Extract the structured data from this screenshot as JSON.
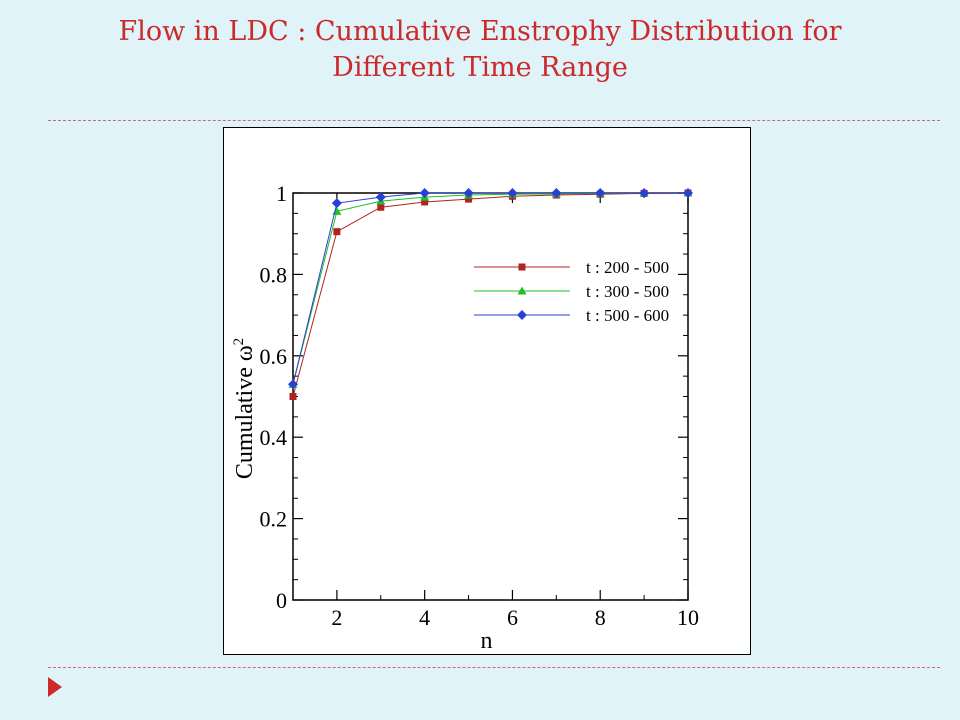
{
  "slide": {
    "title_line1": "Flow in LDC : Cumulative Enstrophy Distribution for",
    "title_line2": "Different Time Range"
  },
  "chart_data": {
    "type": "line",
    "xlabel": "n",
    "ylabel": "Cumulative ω",
    "ylabel_superscript": "2",
    "xlim": [
      1,
      10
    ],
    "ylim": [
      0,
      1
    ],
    "xticks": [
      2,
      4,
      6,
      8,
      10
    ],
    "yticks": [
      0,
      0.2,
      0.4,
      0.6,
      0.8,
      1
    ],
    "ytick_labels": [
      "0",
      "0.2",
      "0.4",
      "0.6",
      "0.8",
      "1"
    ],
    "grid": false,
    "legend_position": "right",
    "x": [
      1,
      2,
      3,
      4,
      5,
      6,
      7,
      8,
      9,
      10
    ],
    "series": [
      {
        "name": "t : 200 - 500",
        "color": "#b22222",
        "marker": "square",
        "values": [
          0.5,
          0.905,
          0.965,
          0.978,
          0.985,
          0.992,
          0.995,
          0.997,
          0.999,
          1.0
        ]
      },
      {
        "name": "t : 300 - 500",
        "color": "#1fbf2a",
        "marker": "triangle",
        "values": [
          0.53,
          0.955,
          0.98,
          0.99,
          0.995,
          0.997,
          0.998,
          0.999,
          1.0,
          1.0
        ]
      },
      {
        "name": "t : 500 - 600",
        "color": "#2a3fd6",
        "marker": "diamond",
        "values": [
          0.53,
          0.975,
          0.99,
          1.0,
          1.0,
          1.0,
          1.0,
          1.0,
          1.0,
          1.0
        ]
      }
    ]
  }
}
